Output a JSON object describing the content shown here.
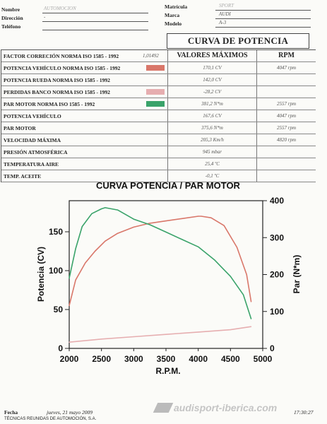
{
  "header": {
    "fields": [
      {
        "label": "Nombre",
        "value": "AUTOMOCION"
      },
      {
        "label": "Dirección",
        "value": "-"
      },
      {
        "label": "Teléfono",
        "value": ""
      }
    ],
    "vehicle": [
      {
        "label": "Matrícula",
        "value": "SPORT"
      },
      {
        "label": "Marca",
        "value": "AUDI"
      },
      {
        "label": "Modelo",
        "value": "A-3"
      }
    ]
  },
  "results": {
    "title": "CURVA DE POTENCIA",
    "col_max": "VALORES MÁXIMOS",
    "col_rpm": "RPM",
    "rows": [
      {
        "label": "FACTOR CORRECIÓN NORMA ISO 1585 - 1992",
        "factor": "1,01492",
        "value": "",
        "rpm": "",
        "swatch": ""
      },
      {
        "label": "POTENCIA VEHÍCULO NORMA ISO 1585 - 1992",
        "factor": "",
        "value": "170,1 CV",
        "rpm": "4047 rpm",
        "swatch": "#d9776a"
      },
      {
        "label": "POTENCIA RUEDA NORMA ISO 1585 - 1992",
        "factor": "",
        "value": "142,0 CV",
        "rpm": "",
        "swatch": ""
      },
      {
        "label": "PERDIDAS BANCO NORMA ISO 1585 - 1992",
        "factor": "",
        "value": "-28,2 CV",
        "rpm": "",
        "swatch": "#e6aeb0"
      },
      {
        "label": "PAR MOTOR NORMA ISO 1585 - 1992",
        "factor": "",
        "value": "381,2 N*m",
        "rpm": "2557 rpm",
        "swatch": "#3aa36a"
      },
      {
        "label": "POTENCIA VEHÍCULO",
        "factor": "",
        "value": "167,6 CV",
        "rpm": "4047 rpm",
        "swatch": ""
      },
      {
        "label": "PAR MOTOR",
        "factor": "",
        "value": "375,6 N*m",
        "rpm": "2557 rpm",
        "swatch": ""
      },
      {
        "label": "VELOCIDAD MÁXIMA",
        "factor": "",
        "value": "205,3 Km/h",
        "rpm": "4820 rpm",
        "swatch": ""
      },
      {
        "label": "PRESIÓN ATMOSFÉRICA",
        "factor": "",
        "value": "945 mbar",
        "rpm": "",
        "swatch": ""
      },
      {
        "label": "TEMPERATURA AIRE",
        "factor": "",
        "value": "25,4 ºC",
        "rpm": "",
        "swatch": ""
      },
      {
        "label": "TEMP. ACEITE",
        "factor": "",
        "value": "-0,1 ºC",
        "rpm": "",
        "swatch": ""
      }
    ]
  },
  "footer": {
    "fecha_label": "Fecha",
    "fecha_value": "jueves, 21 mayo 2009",
    "company": "TÉCNICAS REUNIDAS DE AUTOMOCIÓN, S.A.",
    "watermark": "audisport-iberica.com",
    "time": "17:30:27"
  },
  "colors": {
    "power": "#d9776a",
    "torque": "#3aa36a",
    "losses": "#e6aeb0"
  },
  "chart_data": {
    "type": "line",
    "title": "CURVA POTENCIA / PAR MOTOR",
    "xlabel": "R.P.M.",
    "ylabel": "Potencia (CV)",
    "y2label": "Par (N*m)",
    "xlim": [
      2000,
      5000
    ],
    "ylim": [
      0,
      190
    ],
    "y2lim": [
      0,
      400
    ],
    "xticks": [
      2000,
      2500,
      3000,
      3500,
      4000,
      4500,
      5000
    ],
    "yticks": [
      0,
      50,
      100,
      150
    ],
    "y2ticks": [
      0,
      100,
      200,
      300,
      400
    ],
    "grid": false,
    "series": [
      {
        "axis": "left",
        "color": "#d9776a",
        "x": [
          2000,
          2100,
          2250,
          2400,
          2557,
          2750,
          3000,
          3250,
          3500,
          3750,
          4000,
          4047,
          4200,
          4400,
          4600,
          4750,
          4820
        ],
        "values": [
          55,
          88,
          110,
          125,
          138,
          148,
          156,
          161,
          164,
          167,
          170,
          170,
          168,
          158,
          130,
          95,
          60
        ]
      },
      {
        "axis": "right",
        "color": "#3aa36a",
        "x": [
          2000,
          2100,
          2200,
          2350,
          2500,
          2557,
          2750,
          3000,
          3250,
          3500,
          3750,
          4000,
          4250,
          4500,
          4700,
          4820
        ],
        "values": [
          190,
          270,
          330,
          365,
          378,
          381,
          375,
          350,
          335,
          315,
          295,
          275,
          240,
          195,
          145,
          80
        ]
      },
      {
        "axis": "left",
        "color": "#e6aeb0",
        "x": [
          2000,
          2500,
          3000,
          3500,
          4000,
          4500,
          4820
        ],
        "values": [
          8,
          12,
          15,
          18,
          21,
          24,
          28
        ]
      }
    ]
  }
}
